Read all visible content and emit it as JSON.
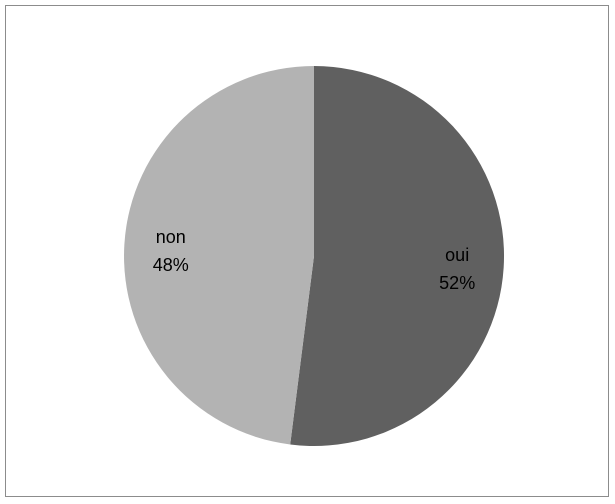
{
  "chart_data": {
    "type": "pie",
    "title": "",
    "slices": [
      {
        "label": "oui",
        "percent_label": "52%",
        "value": 52,
        "color": "#606060"
      },
      {
        "label": "non",
        "percent_label": "48%",
        "value": 48,
        "color": "#b3b3b3"
      }
    ],
    "start_angle_deg": 0,
    "direction": "clockwise",
    "legend": "none"
  }
}
